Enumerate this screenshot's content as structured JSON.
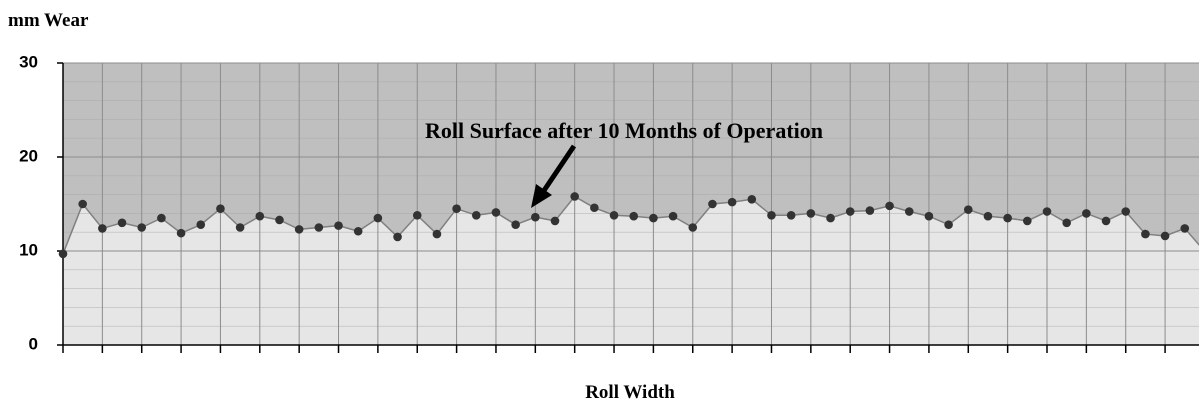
{
  "chart_data": {
    "type": "area",
    "title": "mm Wear",
    "x_label": "Roll Width",
    "annotation": "Roll Surface after 10 Months of Operation",
    "categories": [
      null,
      null,
      null,
      null,
      null,
      null,
      null,
      null,
      null,
      null,
      null,
      null,
      null,
      null,
      null,
      null,
      null,
      null,
      null,
      null,
      null,
      null,
      null,
      null,
      null,
      null,
      null,
      null,
      null,
      null,
      null,
      null,
      null,
      null,
      null,
      null,
      null,
      null,
      null,
      null,
      null,
      null,
      null,
      null,
      null,
      null,
      null,
      null,
      null,
      null,
      null,
      null,
      null,
      null,
      null,
      null,
      null,
      null,
      null
    ],
    "series": [
      {
        "name": null,
        "color": "#808080",
        "marker_color": "#333333",
        "fill": "#e6e6e6",
        "values": [
          9.7,
          15,
          12.4,
          13,
          12.5,
          13.5,
          11.9,
          12.8,
          14.5,
          12.5,
          13.7,
          13.3,
          12.3,
          12.5,
          12.7,
          12.1,
          13.5,
          11.5,
          13.8,
          11.8,
          14.5,
          13.8,
          14.1,
          12.8,
          13.6,
          13.2,
          15.8,
          14.6,
          13.8,
          13.7,
          13.5,
          13.7,
          12.5,
          15,
          15.2,
          15.5,
          13.8,
          13.8,
          14,
          13.5,
          14.2,
          14.3,
          14.8,
          14.2,
          13.7,
          12.8,
          14.4,
          13.7,
          13.5,
          13.2,
          14.2,
          13,
          14,
          13.2,
          14.2,
          11.8,
          11.6,
          12.4,
          10
        ]
      }
    ],
    "ylim": [
      0,
      30
    ],
    "yticks": [
      0,
      10,
      20,
      30
    ],
    "y_minor_ticks": [
      2,
      4,
      6,
      8,
      12,
      14,
      16,
      18,
      22,
      24,
      26,
      28
    ],
    "background": "#bfbfbf",
    "grid": true
  }
}
